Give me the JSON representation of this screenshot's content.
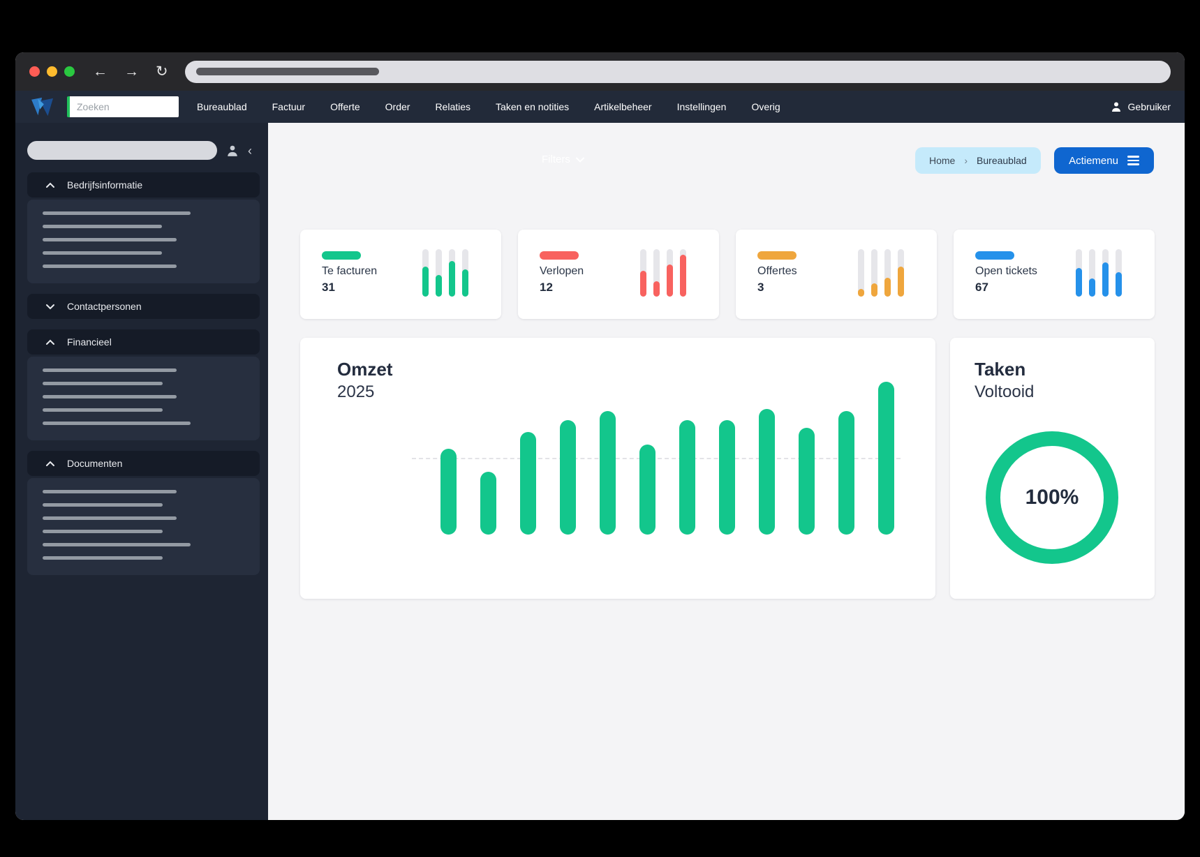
{
  "browser": {
    "back_icon": "←",
    "forward_icon": "→",
    "reload_icon": "↻"
  },
  "navbar": {
    "search_placeholder": "Zoeken",
    "items": [
      "Bureaublad",
      "Factuur",
      "Offerte",
      "Order",
      "Relaties",
      "Taken en notities",
      "Artikelbeheer",
      "Instellingen",
      "Overig"
    ],
    "user_label": "Gebruiker"
  },
  "sidebar": {
    "collapse_icon": "‹",
    "sections": [
      {
        "label": "Bedrijfsinformatie",
        "expanded": true,
        "skeleton_line_widths": [
          212,
          171,
          192,
          171,
          192
        ]
      },
      {
        "label": "Contactpersonen",
        "expanded": false,
        "skeleton_line_widths": []
      },
      {
        "label": "Financieel",
        "expanded": true,
        "skeleton_line_widths": [
          192,
          172,
          192,
          172,
          212
        ]
      },
      {
        "label": "Documenten",
        "expanded": true,
        "skeleton_line_widths": [
          192,
          172,
          192,
          172,
          212,
          172
        ]
      }
    ]
  },
  "main": {
    "filters_label": "Filters",
    "breadcrumb": {
      "home": "Home",
      "separator": "›",
      "current": "Bureaublad"
    },
    "action_button_label": "Actiemenu",
    "stat_cards": [
      {
        "label": "Te facturen",
        "value": "31",
        "color": "#13c68c",
        "spark_bar_percents": [
          63,
          46,
          75,
          57
        ]
      },
      {
        "label": "Verlopen",
        "value": "12",
        "color": "#f8625f",
        "spark_bar_percents": [
          55,
          33,
          68,
          88
        ]
      },
      {
        "label": "Offertes",
        "value": "3",
        "color": "#efa63d",
        "spark_bar_percents": [
          16,
          28,
          40,
          63
        ]
      },
      {
        "label": "Open tickets",
        "value": "67",
        "color": "#2591ea",
        "spark_bar_percents": [
          60,
          38,
          72,
          52
        ]
      }
    ],
    "chart_data": {
      "type": "bar",
      "title": "Omzet",
      "subtitle": "2025",
      "categories": [
        "",
        "",
        "",
        "",
        "",
        "",
        "",
        "",
        "",
        "",
        "",
        ""
      ],
      "values": [
        56,
        41,
        67,
        75,
        81,
        59,
        75,
        75,
        82,
        70,
        81,
        100
      ],
      "values_note": "relative bar heights as % of tallest bar; chart shows no axis tick labels",
      "bar_color": "#13c68c",
      "gridline_percent": 50,
      "grid": "single dashed horizontal line",
      "legend": "none"
    },
    "donut": {
      "type": "donut",
      "title": "Taken",
      "subtitle": "Voltooid",
      "value": 100,
      "percent_label": "100%",
      "color": "#13c68c"
    }
  }
}
